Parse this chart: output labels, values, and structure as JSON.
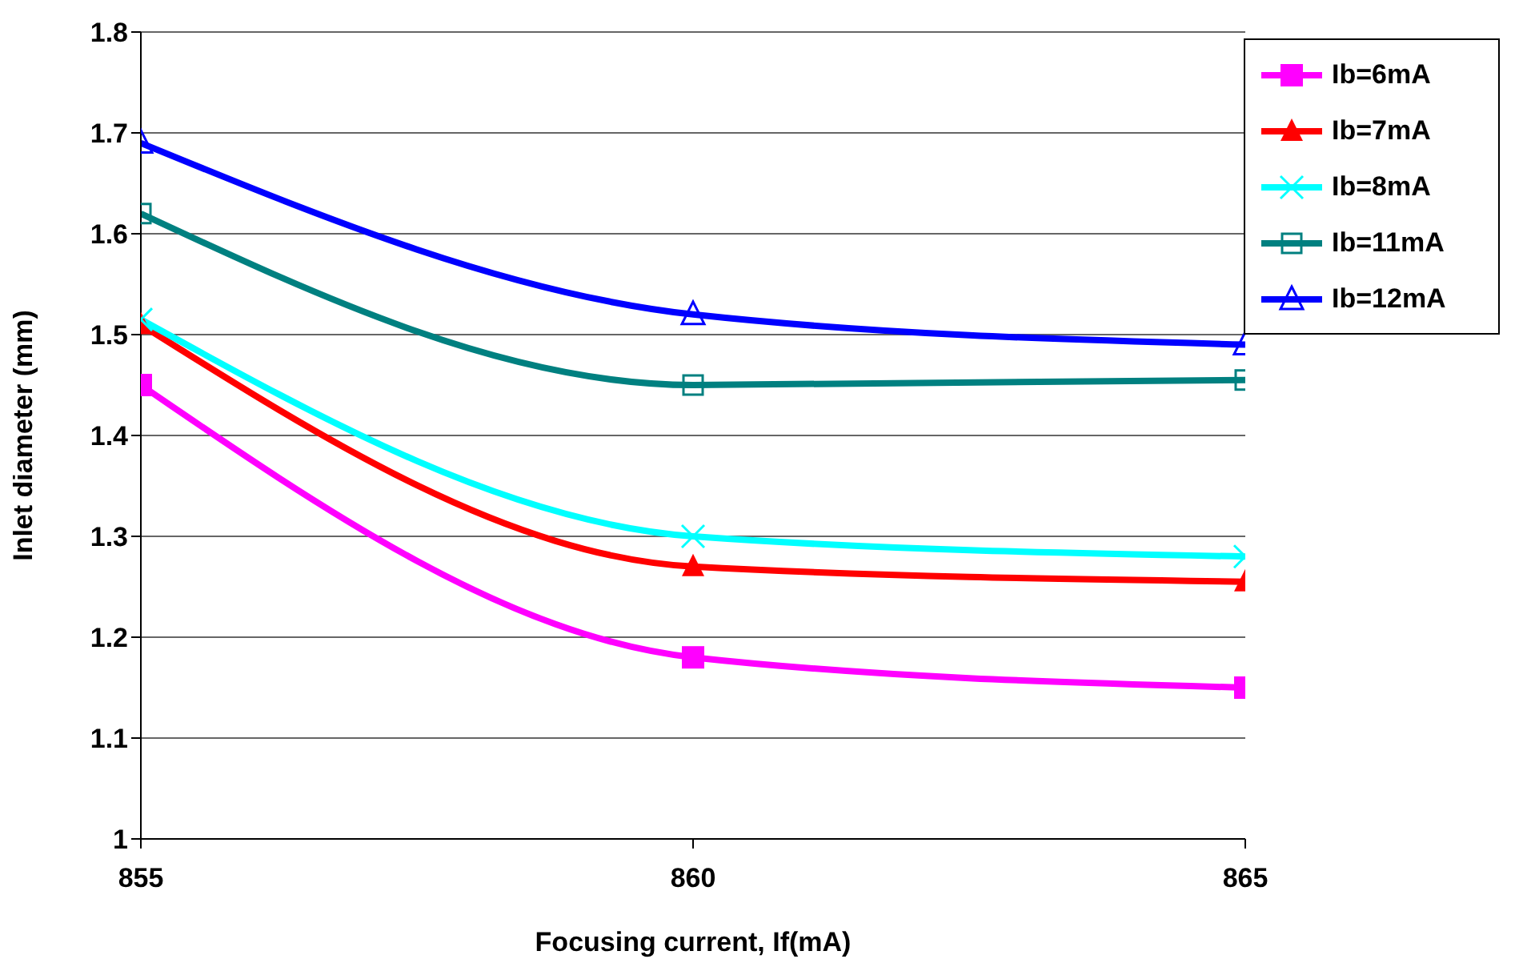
{
  "chart_data": {
    "type": "line",
    "xlabel": "Focusing current, If(mA)",
    "ylabel": "Inlet diameter (mm)",
    "x": [
      855,
      860,
      865
    ],
    "xlim": [
      855,
      865
    ],
    "xticks": [
      855,
      860,
      865
    ],
    "ylim": [
      1,
      1.8
    ],
    "yticks": [
      1,
      1.1,
      1.2,
      1.3,
      1.4,
      1.5,
      1.6,
      1.7,
      1.8
    ],
    "grid": "y",
    "legend": "top right",
    "line_style": "solid",
    "series": [
      {
        "name": "Ib=6mA",
        "color": "#ff00ff",
        "marker": "square",
        "values": [
          1.45,
          1.18,
          1.15
        ]
      },
      {
        "name": "Ib=7mA",
        "color": "#ff0000",
        "marker": "triangle",
        "values": [
          1.51,
          1.27,
          1.255
        ]
      },
      {
        "name": "Ib=8mA",
        "color": "#00ffff",
        "marker": "cross",
        "values": [
          1.515,
          1.3,
          1.28
        ]
      },
      {
        "name": "Ib=11mA",
        "color": "#008080",
        "marker": "square-open",
        "values": [
          1.62,
          1.45,
          1.455
        ]
      },
      {
        "name": "Ib=12mA",
        "color": "#0000ff",
        "marker": "triangle-open",
        "values": [
          1.69,
          1.52,
          1.49
        ]
      }
    ]
  }
}
